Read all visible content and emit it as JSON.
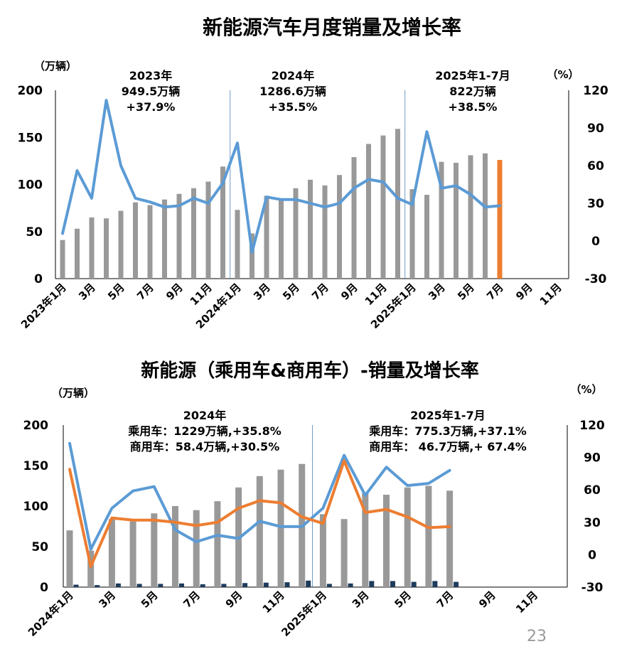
{
  "page_number": "23",
  "chart_data": [
    {
      "type": "bar",
      "title": "新能源汽车月度销量及增长率",
      "y_left_unit": "（万辆）",
      "y_right_unit": "（%）",
      "ylim_left": [
        0,
        200
      ],
      "ylim_right": [
        -30,
        120
      ],
      "y_left_ticks": [
        "200",
        "150",
        "100",
        "50",
        "0"
      ],
      "y_right_ticks": [
        "120",
        "90",
        "60",
        "30",
        "0",
        "-30"
      ],
      "categories": [
        "2023年1月",
        "2月",
        "3月",
        "4月",
        "5月",
        "6月",
        "7月",
        "8月",
        "9月",
        "10月",
        "11月",
        "12月",
        "2024年1月",
        "2月",
        "3月",
        "4月",
        "5月",
        "6月",
        "7月",
        "8月",
        "9月",
        "10月",
        "11月",
        "12月",
        "2025年1月",
        "2月",
        "3月",
        "4月",
        "5月",
        "6月",
        "7月",
        "8月",
        "9月",
        "10月",
        "11月",
        "12月"
      ],
      "x_tick_labels": [
        "2023年1月",
        "",
        "3月",
        "",
        "5月",
        "",
        "7月",
        "",
        "9月",
        "",
        "11月",
        "",
        "2024年1月",
        "",
        "3月",
        "",
        "5月",
        "",
        "7月",
        "",
        "9月",
        "",
        "11月",
        "",
        "2025年1月",
        "",
        "3月",
        "",
        "5月",
        "",
        "7月",
        "",
        "9月",
        "",
        "11月",
        ""
      ],
      "series": [
        {
          "name": "",
          "kind": "bar",
          "axis": "left",
          "color": "#999999",
          "highlight_color": "#ed7d31",
          "values": [
            41,
            53,
            65,
            64,
            72,
            81,
            78,
            84,
            90,
            96,
            103,
            119,
            73,
            48,
            88,
            85,
            96,
            105,
            99,
            110,
            129,
            143,
            152,
            159,
            95,
            89,
            124,
            123,
            131,
            133,
            126,
            null,
            null,
            null,
            null,
            null
          ]
        },
        {
          "name": "",
          "kind": "line",
          "axis": "right",
          "color": "#5b9bd5",
          "values": [
            6,
            56,
            34,
            112,
            60,
            34,
            31,
            27,
            28,
            34,
            30,
            46,
            78,
            -9,
            35,
            33,
            33,
            30,
            27,
            30,
            42,
            49,
            47,
            34,
            29,
            87,
            42,
            44,
            37,
            27,
            28,
            null,
            null,
            null,
            null,
            null
          ]
        }
      ],
      "dividers_after": [
        11,
        23
      ],
      "annotations": [
        {
          "lines": [
            "2023年",
            "949.5万辆",
            "+37.9%"
          ]
        },
        {
          "lines": [
            "2024年",
            "1286.6万辆",
            "+35.5%"
          ]
        },
        {
          "lines": [
            "2025年1-7月",
            "822万辆",
            "+38.5%"
          ]
        }
      ]
    },
    {
      "type": "bar",
      "title": "新能源（乘用车&商用车）-销量及增长率",
      "y_left_unit": "（万辆）",
      "y_right_unit": "（%）",
      "ylim_left": [
        0,
        200
      ],
      "ylim_right": [
        -30,
        120
      ],
      "y_left_ticks": [
        "200",
        "150",
        "100",
        "50",
        "0"
      ],
      "y_right_ticks": [
        "120",
        "90",
        "60",
        "30",
        "0",
        "-30"
      ],
      "categories": [
        "2024年1月",
        "2月",
        "3月",
        "4月",
        "5月",
        "6月",
        "7月",
        "8月",
        "9月",
        "10月",
        "11月",
        "12月",
        "2025年1月",
        "2月",
        "3月",
        "4月",
        "5月",
        "6月",
        "7月",
        "8月",
        "9月",
        "10月",
        "11月",
        "12月"
      ],
      "x_tick_labels": [
        "2024年1月",
        "",
        "3月",
        "",
        "5月",
        "",
        "7月",
        "",
        "9月",
        "",
        "11月",
        "",
        "2025年1月",
        "",
        "3月",
        "",
        "5月",
        "",
        "7月",
        "",
        "9月",
        "",
        "11月",
        ""
      ],
      "series": [
        {
          "name": "",
          "kind": "bar",
          "axis": "left",
          "color": "#999999",
          "values": [
            70,
            45,
            84,
            81,
            91,
            100,
            95,
            106,
            123,
            137,
            145,
            152,
            90,
            84,
            116,
            114,
            123,
            125,
            119,
            null,
            null,
            null,
            null,
            null
          ]
        },
        {
          "name": "",
          "kind": "bar",
          "axis": "left",
          "color": "#1f3b5c",
          "values": [
            3,
            2.5,
            4.5,
            4,
            4,
            4.5,
            3.5,
            4,
            5,
            5.5,
            6,
            8,
            4,
            4.5,
            7.5,
            7.5,
            6.5,
            7.5,
            6.5,
            null,
            null,
            null,
            null,
            null
          ]
        },
        {
          "name": "",
          "kind": "line",
          "axis": "right",
          "color": "#5b9bd5",
          "values": [
            103,
            5,
            43,
            59,
            63,
            23,
            12,
            18,
            15,
            31,
            26,
            26,
            43,
            92,
            55,
            81,
            64,
            66,
            78,
            null,
            null,
            null,
            null,
            null
          ]
        },
        {
          "name": "",
          "kind": "line",
          "axis": "right",
          "color": "#ed7d31",
          "values": [
            79,
            -11,
            34,
            32,
            32,
            30,
            27,
            30,
            43,
            50,
            48,
            35,
            29,
            87,
            39,
            42,
            35,
            25,
            26,
            null,
            null,
            null,
            null,
            null
          ]
        }
      ],
      "dividers_after": [
        11
      ],
      "annotations": [
        {
          "lines": [
            "2024年",
            "乘用车：1229万辆,+35.8%",
            "商用车：58.4万辆,+30.5%"
          ]
        },
        {
          "lines": [
            "2025年1-7月",
            "乘用车：775.3万辆,+37.1%",
            "商用车：  46.7万辆,+  67.4%"
          ]
        }
      ]
    }
  ]
}
